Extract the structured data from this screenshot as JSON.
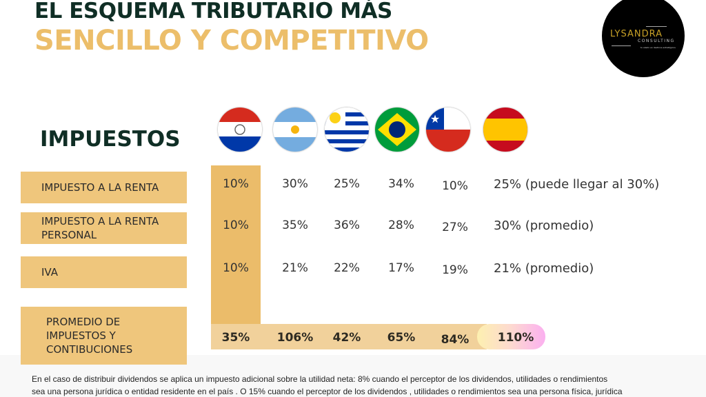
{
  "title": {
    "line1": "EL ESQUEMA TRIBUTARIO MÁS",
    "line2": "SENCILLO Y COMPETITIVO"
  },
  "logo": {
    "name": "LYSANDRA",
    "sub": "CONSULTING",
    "tagline": "tu aliado en destinos estratégicos"
  },
  "heading": "IMPUESTOS",
  "countries": [
    {
      "flag": "paraguay-flag"
    },
    {
      "flag": "argentina-flag"
    },
    {
      "flag": "uruguay-flag"
    },
    {
      "flag": "brazil-flag"
    },
    {
      "flag": "chile-flag"
    },
    {
      "flag": "spain-flag"
    }
  ],
  "rows": [
    {
      "label": "IMPUESTO A LA RENTA",
      "values": [
        "10%",
        "30%",
        "25%",
        "34%",
        "10%",
        "25% (puede llegar al 30%)"
      ]
    },
    {
      "label": "IMPUESTO A LA RENTA PERSONAL",
      "values": [
        "10%",
        "35%",
        "36%",
        "28%",
        "27%",
        "30% (promedio)"
      ]
    },
    {
      "label": "IVA",
      "values": [
        "10%",
        "21%",
        "22%",
        "17%",
        "19%",
        "21% (promedio)"
      ]
    },
    {
      "label": "PROMEDIO DE IMPUESTOS Y CONTIBUCIONES",
      "values": [
        "35%",
        "106%",
        "42%",
        "65%",
        "84%",
        "110%"
      ]
    }
  ],
  "colors": {
    "dark": "#0f2e25",
    "gold": "#ecbe6a",
    "label_bg": "#efc67c"
  },
  "footnote": {
    "line1": "En el caso de distribuir dividendos se aplica un impuesto adicional sobre la utilidad neta: 8%  cuando el perceptor de los dividendos, utilidades o rendimientos",
    "line2": "sea una persona jurídica o entidad residente en el país . O 15% cuando el perceptor de los dividendos , utilidades o rendimientos sea una persona física, jurídica"
  }
}
